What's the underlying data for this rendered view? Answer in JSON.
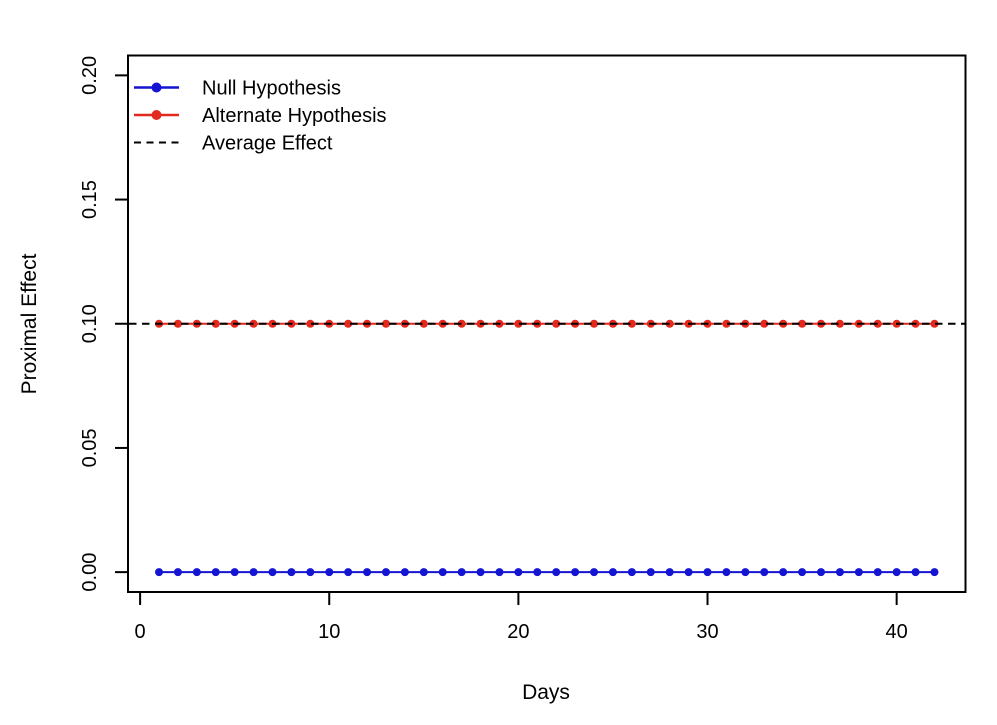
{
  "figure": {
    "background": "#ffffff",
    "foreground": "#000000"
  },
  "chart_data": {
    "type": "line",
    "title": "",
    "xlabel": "Days",
    "ylabel": "Proximal Effect",
    "x": [
      1,
      2,
      3,
      4,
      5,
      6,
      7,
      8,
      9,
      10,
      11,
      12,
      13,
      14,
      15,
      16,
      17,
      18,
      19,
      20,
      21,
      22,
      23,
      24,
      25,
      26,
      27,
      28,
      29,
      30,
      31,
      32,
      33,
      34,
      35,
      36,
      37,
      38,
      39,
      40,
      41,
      42
    ],
    "series": [
      {
        "name": "Null Hypothesis",
        "color": "#1414d2",
        "marker": "filled-circle",
        "values": [
          0,
          0,
          0,
          0,
          0,
          0,
          0,
          0,
          0,
          0,
          0,
          0,
          0,
          0,
          0,
          0,
          0,
          0,
          0,
          0,
          0,
          0,
          0,
          0,
          0,
          0,
          0,
          0,
          0,
          0,
          0,
          0,
          0,
          0,
          0,
          0,
          0,
          0,
          0,
          0,
          0,
          0
        ]
      },
      {
        "name": "Alternate Hypothesis",
        "color": "#e3281d",
        "marker": "filled-circle",
        "values": [
          0.1,
          0.1,
          0.1,
          0.1,
          0.1,
          0.1,
          0.1,
          0.1,
          0.1,
          0.1,
          0.1,
          0.1,
          0.1,
          0.1,
          0.1,
          0.1,
          0.1,
          0.1,
          0.1,
          0.1,
          0.1,
          0.1,
          0.1,
          0.1,
          0.1,
          0.1,
          0.1,
          0.1,
          0.1,
          0.1,
          0.1,
          0.1,
          0.1,
          0.1,
          0.1,
          0.1,
          0.1,
          0.1,
          0.1,
          0.1,
          0.1,
          0.1
        ]
      }
    ],
    "reference_line": {
      "label": "Average Effect",
      "value": 0.1,
      "color": "#000000",
      "style": "dashed"
    },
    "xlim": [
      1,
      42
    ],
    "ylim": [
      0,
      0.2
    ],
    "xticks": [
      0,
      10,
      20,
      30,
      40
    ],
    "yticks": [
      0,
      0.05,
      0.1,
      0.15,
      0.2
    ],
    "ytick_labels": [
      "0.00",
      "0.05",
      "0.10",
      "0.15",
      "0.20"
    ],
    "xtick_labels": [
      "0",
      "10",
      "20",
      "30",
      "40"
    ],
    "legend_position": "top-left",
    "legend_entries": [
      "Null Hypothesis",
      "Alternate Hypothesis",
      "Average Effect"
    ],
    "grid": false
  }
}
